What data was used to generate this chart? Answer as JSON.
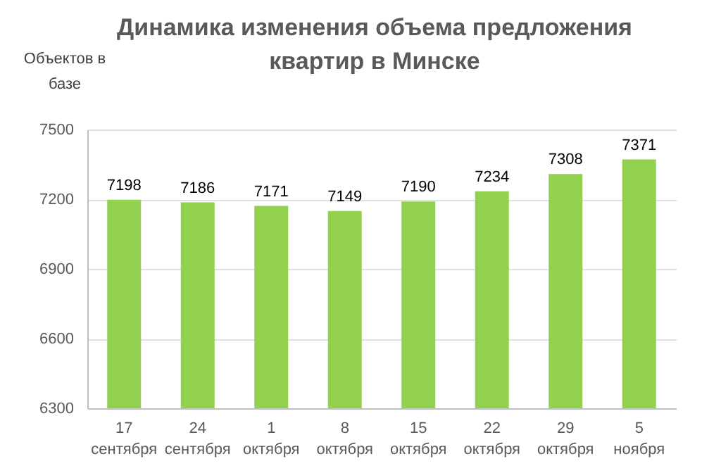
{
  "chart_data": {
    "type": "bar",
    "title": "Динамика изменения объема предложения квартир в Минске",
    "ylabel": "Объектов в базе",
    "categories": [
      "17 сентября",
      "24 сентября",
      "1 октября",
      "8 октября",
      "15 октября",
      "22 октября",
      "29 октября",
      "5 ноября"
    ],
    "values": [
      7198,
      7186,
      7171,
      7149,
      7190,
      7234,
      7308,
      7371
    ],
    "color": "#92d050",
    "ylim": [
      6300,
      7500
    ],
    "yticks": [
      6300,
      6600,
      6900,
      7200,
      7500
    ],
    "grid": "y",
    "data_labels": true
  }
}
